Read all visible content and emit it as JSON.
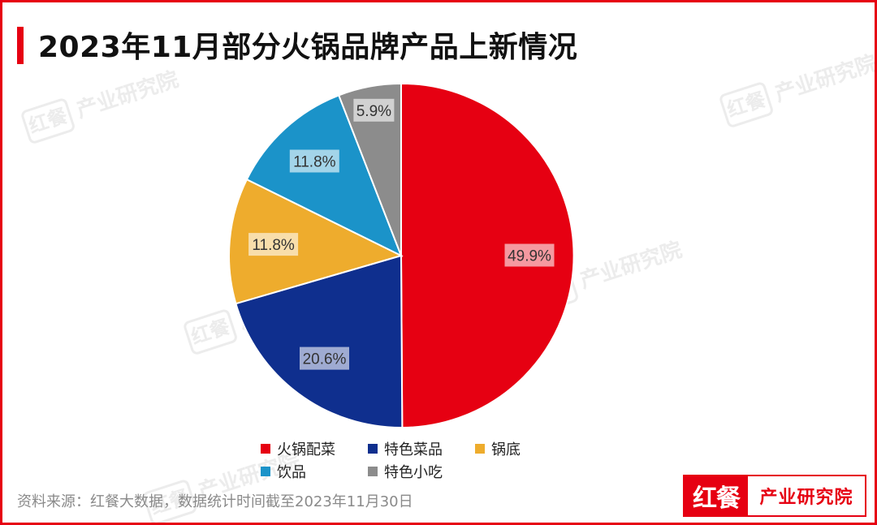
{
  "title": "2023年11月部分火锅品牌产品上新情况",
  "source": "资料来源：红餐大数据，数据统计时间截至2023年11月30日",
  "logo": {
    "brand": "红餐",
    "subtitle": "产业研究院"
  },
  "watermark": {
    "brand": "红餐",
    "text": "产业研究院"
  },
  "colors": {
    "accent": "#e60012"
  },
  "chart_data": {
    "type": "pie",
    "title": "2023年11月部分火锅品牌产品上新情况",
    "unit": "%",
    "legend_position": "bottom",
    "slices": [
      {
        "label": "火锅配菜",
        "value": 49.9,
        "display": "49.9%",
        "color": "#e60012"
      },
      {
        "label": "特色菜品",
        "value": 20.6,
        "display": "20.6%",
        "color": "#0f2f8e"
      },
      {
        "label": "锅底",
        "value": 11.8,
        "display": "11.8%",
        "color": "#eeac2d"
      },
      {
        "label": "饮品",
        "value": 11.8,
        "display": "11.8%",
        "color": "#1b93c9"
      },
      {
        "label": "特色小吃",
        "value": 5.9,
        "display": "5.9%",
        "color": "#8c8c8c"
      }
    ]
  }
}
